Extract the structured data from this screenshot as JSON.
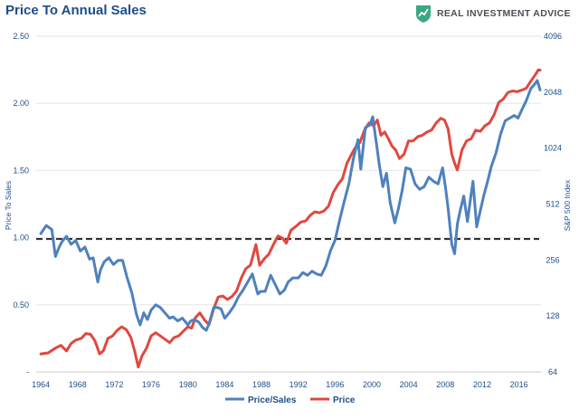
{
  "header": {
    "title": "Price To Annual Sales",
    "brand": "REAL INVESTMENT ADVICE",
    "brand_icon": "shield-chart-icon",
    "brand_color": "#3aa882"
  },
  "chart_data": {
    "type": "line",
    "title": "Price To Annual Sales",
    "ylabel": "Price To Sales",
    "y2label": "S&P 500 Index",
    "xlim": [
      1963.5,
      2018.4
    ],
    "ylim": [
      0,
      2.5
    ],
    "y2lim": [
      64,
      4096
    ],
    "y2scale": "log2",
    "x_ticks": [
      "1964",
      "1968",
      "1972",
      "1976",
      "1980",
      "1984",
      "1988",
      "1992",
      "1996",
      "2000",
      "2004",
      "2008",
      "2012",
      "2016"
    ],
    "y_ticks": [
      "-",
      "0.50",
      "1.00",
      "1.50",
      "2.00",
      "2.50"
    ],
    "y2_ticks": [
      "64",
      "128",
      "256",
      "512",
      "1024",
      "2048",
      "4096"
    ],
    "reference_line": {
      "y": 0.99,
      "style": "dashed",
      "color": "#333333"
    },
    "legend": {
      "position": "bottom-center"
    },
    "series": [
      {
        "name": "Price/Sales",
        "axis": "left",
        "color": "#4f81bd",
        "x": [
          1964.0,
          1964.6,
          1965.2,
          1965.6,
          1966.0,
          1966.3,
          1966.8,
          1967.3,
          1967.8,
          1968.3,
          1968.8,
          1969.3,
          1969.7,
          1970.2,
          1970.5,
          1970.9,
          1971.4,
          1971.9,
          1972.4,
          1972.9,
          1973.4,
          1973.9,
          1974.4,
          1974.8,
          1975.2,
          1975.6,
          1976.0,
          1976.5,
          1977.0,
          1977.5,
          1978.0,
          1978.4,
          1978.9,
          1979.4,
          1980.0,
          1980.3,
          1980.7,
          1981.2,
          1981.6,
          1982.0,
          1982.3,
          1982.8,
          1983.2,
          1983.6,
          1984.0,
          1984.5,
          1985.0,
          1985.5,
          1986.0,
          1986.5,
          1987.0,
          1987.6,
          1987.9,
          1988.4,
          1989.0,
          1989.5,
          1990.0,
          1990.5,
          1990.9,
          1991.4,
          1992.0,
          1992.5,
          1993.0,
          1993.5,
          1994.0,
          1994.5,
          1995.0,
          1995.5,
          1996.0,
          1996.5,
          1997.0,
          1997.5,
          1998.0,
          1998.5,
          1998.8,
          1999.3,
          1999.8,
          2000.1,
          2000.5,
          2000.8,
          2001.2,
          2001.6,
          2002.0,
          2002.5,
          2002.9,
          2003.3,
          2003.7,
          2004.2,
          2004.7,
          2005.2,
          2005.7,
          2006.2,
          2006.7,
          2007.2,
          2007.7,
          2008.0,
          2008.3,
          2008.7,
          2009.0,
          2009.3,
          2009.6,
          2010.0,
          2010.4,
          2010.7,
          2011.0,
          2011.4,
          2011.8,
          2012.2,
          2012.6,
          2013.0,
          2013.5,
          2014.0,
          2014.5,
          2015.0,
          2015.5,
          2015.9,
          2016.3,
          2016.8,
          2017.3,
          2017.8,
          2018.0,
          2018.3
        ],
        "values": [
          1.03,
          1.09,
          1.06,
          0.86,
          0.93,
          0.97,
          1.01,
          0.95,
          0.98,
          0.9,
          0.93,
          0.84,
          0.85,
          0.67,
          0.76,
          0.82,
          0.85,
          0.8,
          0.83,
          0.83,
          0.7,
          0.59,
          0.43,
          0.35,
          0.44,
          0.39,
          0.46,
          0.5,
          0.48,
          0.44,
          0.4,
          0.41,
          0.38,
          0.4,
          0.35,
          0.38,
          0.39,
          0.37,
          0.33,
          0.31,
          0.36,
          0.48,
          0.48,
          0.47,
          0.4,
          0.44,
          0.49,
          0.56,
          0.61,
          0.67,
          0.73,
          0.58,
          0.6,
          0.6,
          0.72,
          0.65,
          0.58,
          0.61,
          0.67,
          0.7,
          0.7,
          0.74,
          0.72,
          0.75,
          0.73,
          0.72,
          0.79,
          0.9,
          0.98,
          1.13,
          1.27,
          1.4,
          1.59,
          1.73,
          1.51,
          1.82,
          1.84,
          1.9,
          1.7,
          1.55,
          1.38,
          1.48,
          1.26,
          1.11,
          1.22,
          1.35,
          1.52,
          1.51,
          1.4,
          1.36,
          1.38,
          1.45,
          1.42,
          1.4,
          1.52,
          1.38,
          1.22,
          0.95,
          0.88,
          1.1,
          1.2,
          1.31,
          1.12,
          1.27,
          1.42,
          1.08,
          1.2,
          1.32,
          1.42,
          1.53,
          1.63,
          1.77,
          1.87,
          1.89,
          1.91,
          1.89,
          1.95,
          2.02,
          2.11,
          2.15,
          2.17,
          2.1
        ]
      },
      {
        "name": "Price",
        "axis": "right",
        "color": "#e0483e",
        "x": [
          1964.0,
          1964.8,
          1965.6,
          1966.2,
          1966.8,
          1967.3,
          1967.8,
          1968.4,
          1968.9,
          1969.4,
          1969.9,
          1970.4,
          1970.8,
          1971.3,
          1971.8,
          1972.3,
          1972.8,
          1973.3,
          1973.8,
          1974.2,
          1974.6,
          1975.0,
          1975.5,
          1976.0,
          1976.5,
          1977.0,
          1977.5,
          1978.0,
          1978.5,
          1979.0,
          1979.5,
          1980.0,
          1980.4,
          1980.8,
          1981.3,
          1981.8,
          1982.3,
          1982.8,
          1983.3,
          1983.8,
          1984.3,
          1984.8,
          1985.3,
          1985.8,
          1986.3,
          1986.8,
          1987.4,
          1987.8,
          1988.3,
          1988.8,
          1989.3,
          1989.8,
          1990.3,
          1990.7,
          1991.2,
          1991.8,
          1992.3,
          1992.8,
          1993.3,
          1993.8,
          1994.3,
          1994.8,
          1995.3,
          1995.8,
          1996.3,
          1996.8,
          1997.3,
          1997.8,
          1998.3,
          1998.7,
          1999.2,
          1999.7,
          2000.2,
          2000.6,
          2001.0,
          2001.4,
          2001.8,
          2002.2,
          2002.6,
          2003.0,
          2003.5,
          2004.0,
          2004.5,
          2005.0,
          2005.5,
          2006.0,
          2006.5,
          2007.0,
          2007.5,
          2007.9,
          2008.3,
          2008.7,
          2009.0,
          2009.3,
          2009.8,
          2010.3,
          2010.8,
          2011.3,
          2011.8,
          2012.3,
          2012.8,
          2013.3,
          2013.8,
          2014.3,
          2014.8,
          2015.3,
          2015.8,
          2016.3,
          2016.8,
          2017.3,
          2017.8,
          2018.1,
          2018.3
        ],
        "values": [
          80,
          81,
          86,
          89,
          83,
          91,
          95,
          97,
          103,
          102,
          94,
          80,
          83,
          97,
          100,
          107,
          112,
          108,
          98,
          83,
          68,
          78,
          86,
          100,
          104,
          100,
          96,
          92,
          98,
          100,
          106,
          112,
          110,
          125,
          133,
          122,
          115,
          140,
          162,
          164,
          157,
          163,
          175,
          205,
          230,
          240,
          310,
          240,
          260,
          275,
          310,
          345,
          335,
          315,
          370,
          390,
          410,
          415,
          445,
          465,
          460,
          470,
          500,
          590,
          650,
          700,
          850,
          950,
          1050,
          1100,
          1280,
          1400,
          1350,
          1450,
          1200,
          1250,
          1150,
          1050,
          1000,
          900,
          950,
          1120,
          1120,
          1180,
          1200,
          1250,
          1280,
          1400,
          1480,
          1450,
          1300,
          950,
          850,
          780,
          1000,
          1120,
          1150,
          1280,
          1260,
          1350,
          1400,
          1550,
          1800,
          1880,
          2040,
          2080,
          2060,
          2100,
          2150,
          2350,
          2550,
          2700,
          2690
        ]
      }
    ]
  }
}
